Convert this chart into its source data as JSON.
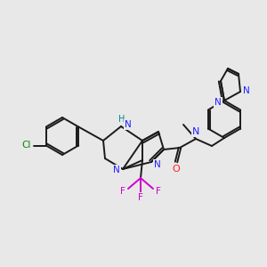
{
  "bg": "#e8e8e8",
  "C": "#1a1a1a",
  "N": "#2020ff",
  "O": "#ff2020",
  "F": "#cc00cc",
  "Cl": "#008800",
  "NH_color": "#008888",
  "lw": 1.4,
  "figsize": [
    3.0,
    3.0
  ],
  "dpi": 100
}
